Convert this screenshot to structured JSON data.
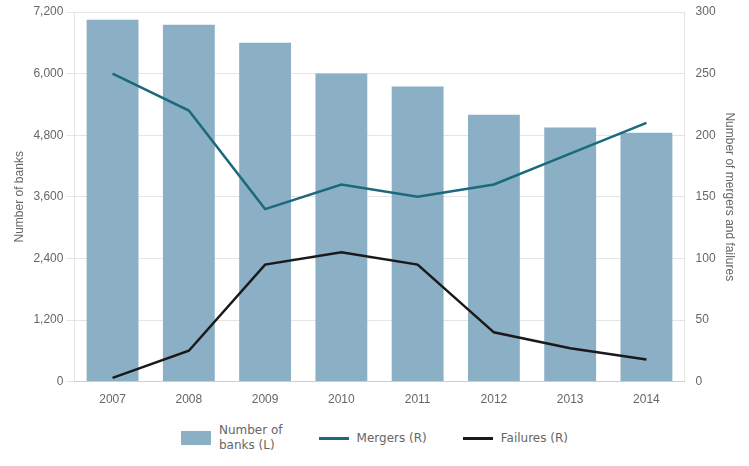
{
  "chart_data": {
    "type": "bar",
    "categories": [
      "2007",
      "2008",
      "2009",
      "2010",
      "2011",
      "2012",
      "2013",
      "2014"
    ],
    "series": [
      {
        "name": "Number of\nbanks (L)",
        "type": "bar",
        "color": "#8BAFC5",
        "values": [
          7050,
          6950,
          6600,
          6000,
          5750,
          5200,
          4950,
          4850
        ]
      },
      {
        "name": "Mergers (R)",
        "type": "line",
        "color": "#1B6A7B",
        "axis": "y2",
        "values": [
          250,
          220,
          140,
          160,
          150,
          160,
          185,
          210
        ]
      },
      {
        "name": "Failures (R)",
        "type": "line",
        "color": "#1A1A1A",
        "axis": "y2",
        "values": [
          3,
          25,
          95,
          105,
          95,
          40,
          27,
          18
        ]
      }
    ],
    "ylabel": "Number of banks",
    "y2label": "Number of mergers and failures",
    "ylim": [
      0,
      7200
    ],
    "yticks": [
      0,
      {
        "value": 1200,
        "label": "1,200"
      },
      {
        "value": 2400,
        "label": "2,400"
      },
      {
        "value": 3600,
        "label": "3,600"
      },
      {
        "value": 4800,
        "label": "4,800"
      },
      {
        "value": 6000,
        "label": "6,000"
      },
      {
        "value": 7200,
        "label": "7,200"
      }
    ],
    "y2lim": [
      0,
      300
    ],
    "y2ticks": [
      0,
      50,
      100,
      150,
      200,
      250,
      300
    ],
    "grid": true,
    "legend": "bottom"
  }
}
